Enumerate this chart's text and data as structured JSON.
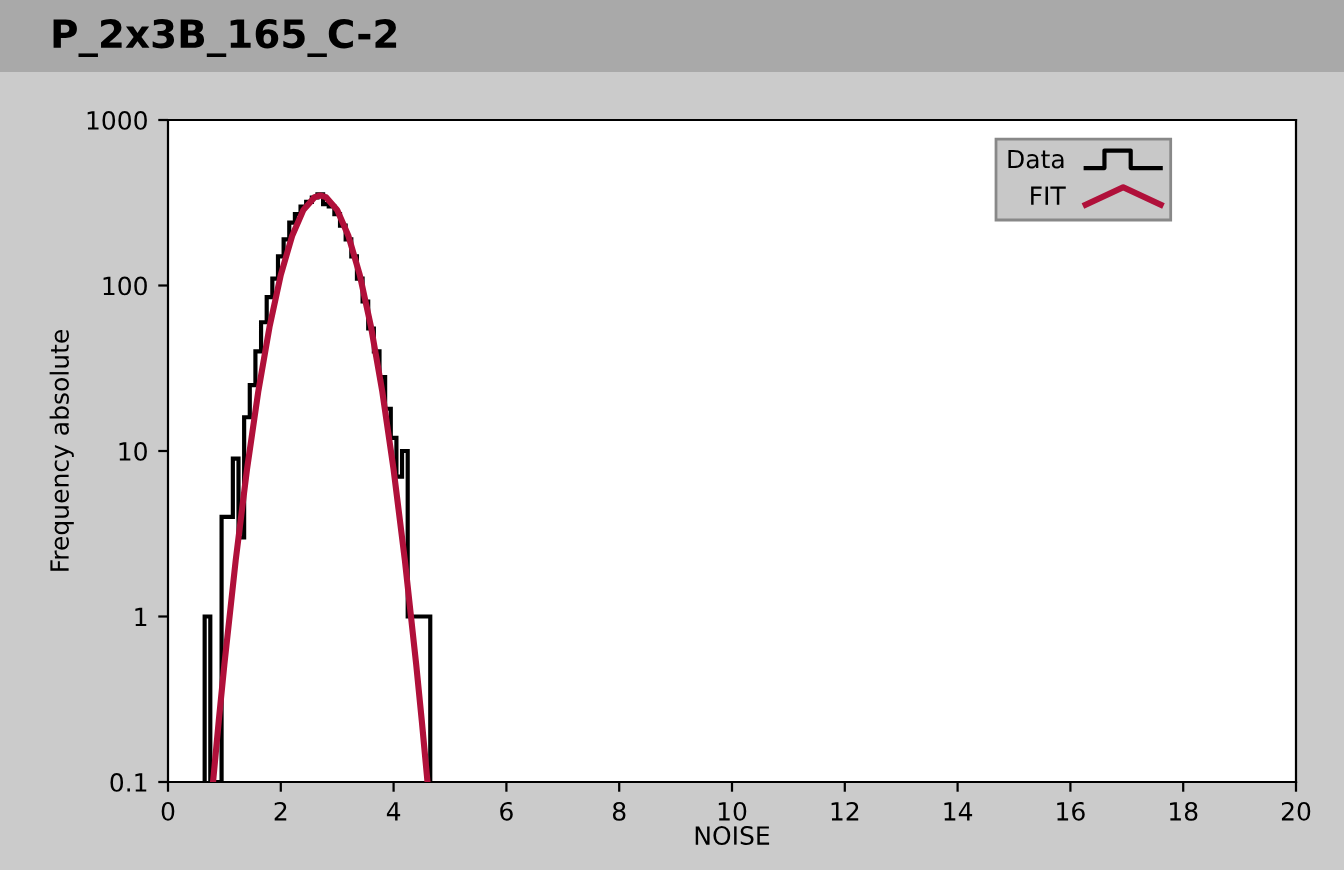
{
  "chart_data": {
    "type": "histogram",
    "title": "P_2x3B_165_C-2",
    "xlabel": "NOISE",
    "ylabel": "Frequency absolute",
    "series": [
      {
        "name": "Data",
        "color": "#000000",
        "bins": [
          0.65,
          0.75,
          0.85,
          0.95,
          1.05,
          1.15,
          1.25,
          1.35,
          1.45,
          1.55,
          1.65,
          1.75,
          1.85,
          1.95,
          2.05,
          2.15,
          2.25,
          2.35,
          2.45,
          2.55,
          2.65,
          2.75,
          2.85,
          2.95,
          3.05,
          3.15,
          3.25,
          3.35,
          3.45,
          3.55,
          3.65,
          3.75,
          3.85,
          3.95,
          4.05,
          4.15,
          4.25,
          4.35,
          4.45,
          4.55,
          4.65
        ],
        "values": [
          1,
          null,
          null,
          4,
          4,
          9,
          3,
          16,
          25,
          40,
          60,
          85,
          110,
          150,
          190,
          240,
          270,
          300,
          320,
          340,
          355,
          310,
          300,
          270,
          230,
          190,
          150,
          110,
          80,
          55,
          40,
          28,
          18,
          12,
          7,
          10,
          1,
          1,
          1,
          1
        ]
      },
      {
        "name": "FIT",
        "type": "line",
        "color": "#b0103a",
        "x": [
          0.8,
          0.9,
          1.0,
          1.2,
          1.4,
          1.6,
          1.8,
          2.0,
          2.2,
          2.4,
          2.6,
          2.7,
          2.8,
          3.0,
          3.2,
          3.4,
          3.6,
          3.8,
          4.0,
          4.2,
          4.4,
          4.5,
          4.6
        ],
        "values": [
          0.101,
          0.234,
          0.515,
          2.18,
          7.73,
          22.8,
          56.2,
          116,
          199,
          286,
          342,
          350,
          342,
          286,
          199,
          116,
          56.2,
          22.8,
          7.73,
          2.18,
          0.515,
          0.234,
          0.101
        ]
      }
    ],
    "log": "y",
    "xlim": [
      0,
      20
    ],
    "xticks": [
      0,
      2,
      4,
      6,
      8,
      10,
      12,
      14,
      16,
      18,
      20
    ],
    "ylim": [
      0.1,
      1000
    ],
    "yticks": [
      0.1,
      1,
      10,
      100,
      1000
    ],
    "grid": false,
    "legend": "top right"
  }
}
